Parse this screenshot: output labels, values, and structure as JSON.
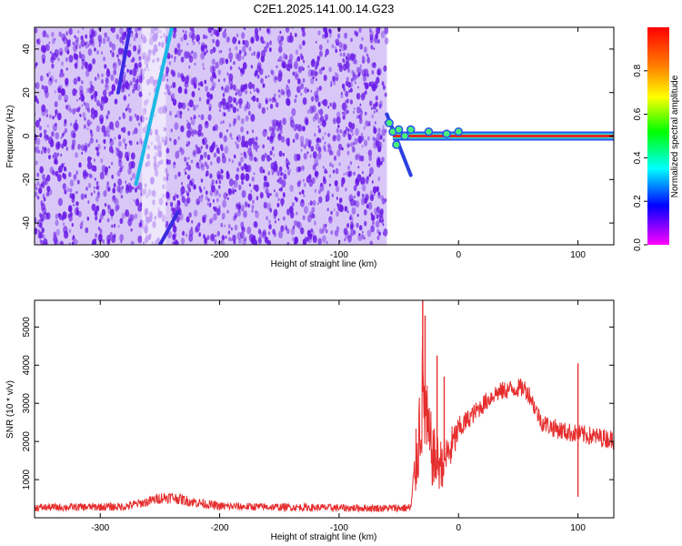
{
  "title": "C2E1.2025.141.00.14.G23",
  "chart_data": [
    {
      "type": "heatmap",
      "xlabel": "Height of straight line (km)",
      "ylabel": "Frequency (Hz)",
      "colorbar_label": "Normalized spectral amplitude",
      "xlim": [
        -355,
        130
      ],
      "ylim": [
        -50,
        50
      ],
      "xticks": [
        -300,
        -200,
        -100,
        0,
        100
      ],
      "yticks": [
        -40,
        -20,
        0,
        20,
        40
      ],
      "colorbar_range": [
        0,
        1
      ],
      "colorbar_ticks": [
        0.0,
        0.2,
        0.4,
        0.6,
        0.8
      ],
      "colormap": [
        "#ff00ff",
        "#0000ff",
        "#00ffff",
        "#00ff00",
        "#ffff00",
        "#ff8000",
        "#ff0000"
      ],
      "noise_region_x": [
        -355,
        -60
      ],
      "noise_color": "#6a1be6",
      "carrier": {
        "x_start": -55,
        "x_end": 130,
        "frequency_hz": 0,
        "color": "#e6261f"
      },
      "streaks": [
        {
          "x": [
            -270,
            -240
          ],
          "y": [
            -22,
            50
          ],
          "color": "#1fb8e6"
        },
        {
          "x": [
            -250,
            -235
          ],
          "y": [
            -50,
            -35
          ],
          "color": "#3a2ae0"
        },
        {
          "x": [
            -285,
            -275
          ],
          "y": [
            20,
            50
          ],
          "color": "#3a2ae0"
        },
        {
          "x": [
            -60,
            -40
          ],
          "y": [
            10,
            -18
          ],
          "color": "#2a40e0"
        }
      ]
    },
    {
      "type": "line",
      "xlabel": "Height of straight line (km)",
      "ylabel": "SNR (10 * v/v)",
      "xlim": [
        -355,
        130
      ],
      "ylim": [
        0,
        5700
      ],
      "xticks": [
        -300,
        -200,
        -100,
        0,
        100
      ],
      "yticks": [
        1000,
        2000,
        3000,
        4000,
        5000
      ],
      "series": [
        {
          "color": "#e62d2d",
          "envelope": {
            "x": [
              -355,
              -320,
              -280,
              -260,
              -250,
              -240,
              -225,
              -200,
              -150,
              -100,
              -60,
              -40,
              -35,
              -30,
              -28,
              -25,
              -20,
              -15,
              -10,
              -5,
              0,
              10,
              20,
              30,
              40,
              50,
              55,
              60,
              65,
              70,
              80,
              90,
              100,
              110,
              120,
              130
            ],
            "center": [
              270,
              280,
              290,
              420,
              520,
              540,
              430,
              300,
              280,
              260,
              250,
              260,
              1600,
              3300,
              2800,
              2000,
              1500,
              1400,
              1600,
              1900,
              2300,
              2650,
              2950,
              3250,
              3350,
              3400,
              3400,
              3200,
              2800,
              2500,
              2350,
              2250,
              2200,
              2150,
              2100,
              2050
            ],
            "spread": [
              100,
              100,
              110,
              130,
              150,
              150,
              140,
              110,
              100,
              100,
              100,
              120,
              1000,
              1700,
              1300,
              1100,
              800,
              700,
              600,
              550,
              350,
              250,
              250,
              250,
              250,
              250,
              250,
              250,
              250,
              250,
              250,
              250,
              250,
              250,
              250,
              250
            ]
          },
          "spikes": [
            {
              "x": -30,
              "y": 5700
            },
            {
              "x": -28,
              "y": 5300
            },
            {
              "x": -18,
              "y": 4250
            },
            {
              "x": 100,
              "y": 4050
            },
            {
              "x": 100,
              "y": 550
            },
            {
              "x": -12,
              "y": 3700
            }
          ]
        }
      ]
    }
  ]
}
